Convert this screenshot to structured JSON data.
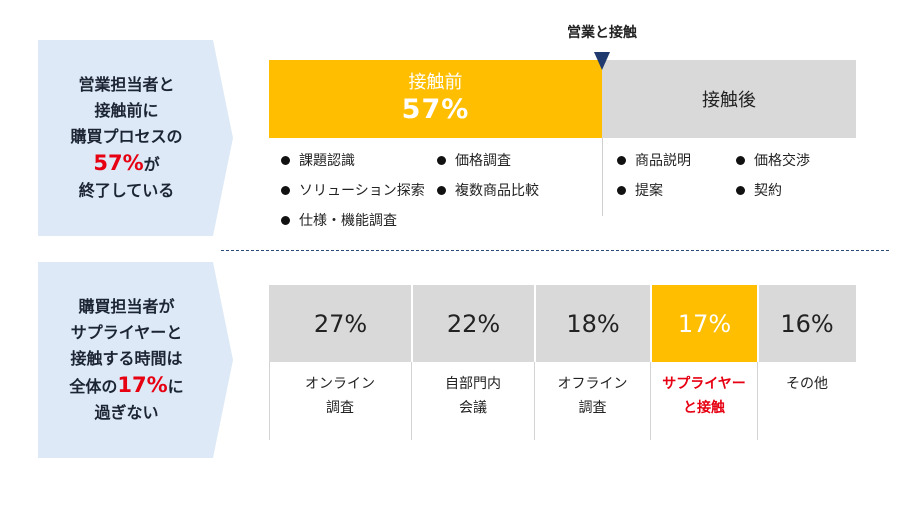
{
  "top_panel": {
    "line1": "営業担当者と",
    "line2": "接触前に",
    "line3": "購買プロセスの",
    "highlight": "57%",
    "suffix": "が",
    "line5": "終了している"
  },
  "bottom_panel": {
    "line1": "購買担当者が",
    "line2": "サプライヤーと",
    "line3": "接触する時間は",
    "prefix": "全体の",
    "highlight": "17%",
    "suffix": "に",
    "line5": "過ぎない"
  },
  "marker_label": "営業と接触",
  "before": {
    "title": "接触前",
    "percent": "57%",
    "items": [
      "課題認識",
      "価格調査",
      "ソリューション探索",
      "複数商品比較",
      "仕様・機能調査"
    ]
  },
  "after": {
    "title": "接触後",
    "items": [
      "商品説明",
      "価格交渉",
      "提案",
      "契約"
    ]
  },
  "time_breakdown": [
    {
      "percent": "27%",
      "line1": "オンライン",
      "line2": "調査",
      "highlight": false
    },
    {
      "percent": "22%",
      "line1": "自部門内",
      "line2": "会議",
      "highlight": false
    },
    {
      "percent": "18%",
      "line1": "オフライン",
      "line2": "調査",
      "highlight": false
    },
    {
      "percent": "17%",
      "line1": "サプライヤー",
      "line2": "と接触",
      "highlight": true
    },
    {
      "percent": "16%",
      "line1": "その他",
      "line2": "",
      "highlight": false
    }
  ],
  "colors": {
    "accent": "#ffbe00",
    "neutral": "#d9d9d9",
    "highlight_text": "#e60012",
    "panel_bg": "#dde9f6",
    "marker": "#1f3a6e"
  }
}
